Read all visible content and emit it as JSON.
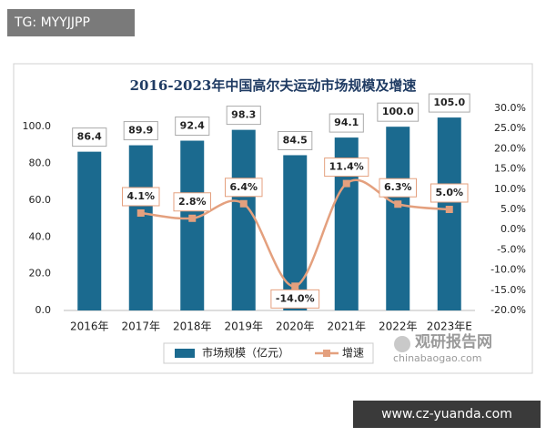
{
  "watermarks": {
    "top_left": "TG: MYYJJPP",
    "bottom_right": "www.cz-yuanda.com",
    "logo": "观研报告网",
    "logo_url": "chinabaogao.com"
  },
  "chart_data": {
    "type": "bar",
    "title": "2016-2023年中国高尔夫运动市场规模及增速",
    "categories": [
      "2016年",
      "2017年",
      "2018年",
      "2019年",
      "2020年",
      "2021年",
      "2022年",
      "2023年E"
    ],
    "series": [
      {
        "name": "市场规模（亿元）",
        "type": "bar",
        "color": "#1b6a8f",
        "values": [
          86.4,
          89.9,
          92.4,
          98.3,
          84.5,
          94.1,
          100.0,
          105.0
        ],
        "value_labels": [
          "86.4",
          "89.9",
          "92.4",
          "98.3",
          "84.5",
          "94.1",
          "100.0",
          "105.0"
        ]
      },
      {
        "name": "增速",
        "type": "line",
        "axis": "y2",
        "color": "#e4a07e",
        "values": [
          null,
          4.1,
          2.8,
          6.4,
          -14.0,
          11.4,
          6.3,
          5.0
        ],
        "value_labels": [
          null,
          "4.1%",
          "2.8%",
          "6.4%",
          "-14.0%",
          "11.4%",
          "6.3%",
          "5.0%"
        ]
      }
    ],
    "ylim": [
      0,
      110
    ],
    "yticks": [
      {
        "value": 0,
        "label": "0.0"
      },
      {
        "value": 20,
        "label": "20.0"
      },
      {
        "value": 40,
        "label": "40.0"
      },
      {
        "value": 60,
        "label": "60.0"
      },
      {
        "value": 80,
        "label": "80.0"
      },
      {
        "value": 100,
        "label": "100.0"
      }
    ],
    "y2lim": [
      -20,
      30
    ],
    "y2ticks": [
      {
        "value": -20,
        "label": "-20.0%"
      },
      {
        "value": -15,
        "label": "-15.0%"
      },
      {
        "value": -10,
        "label": "-10.0%"
      },
      {
        "value": -5,
        "label": "-5.0%"
      },
      {
        "value": 0,
        "label": "0.0%"
      },
      {
        "value": 5,
        "label": "5.0%"
      },
      {
        "value": 10,
        "label": "10.0%"
      },
      {
        "value": 15,
        "label": "15.0%"
      },
      {
        "value": 20,
        "label": "20.0%"
      },
      {
        "value": 25,
        "label": "25.0%"
      },
      {
        "value": 30,
        "label": "30.0%"
      }
    ],
    "legend": "bottom"
  }
}
